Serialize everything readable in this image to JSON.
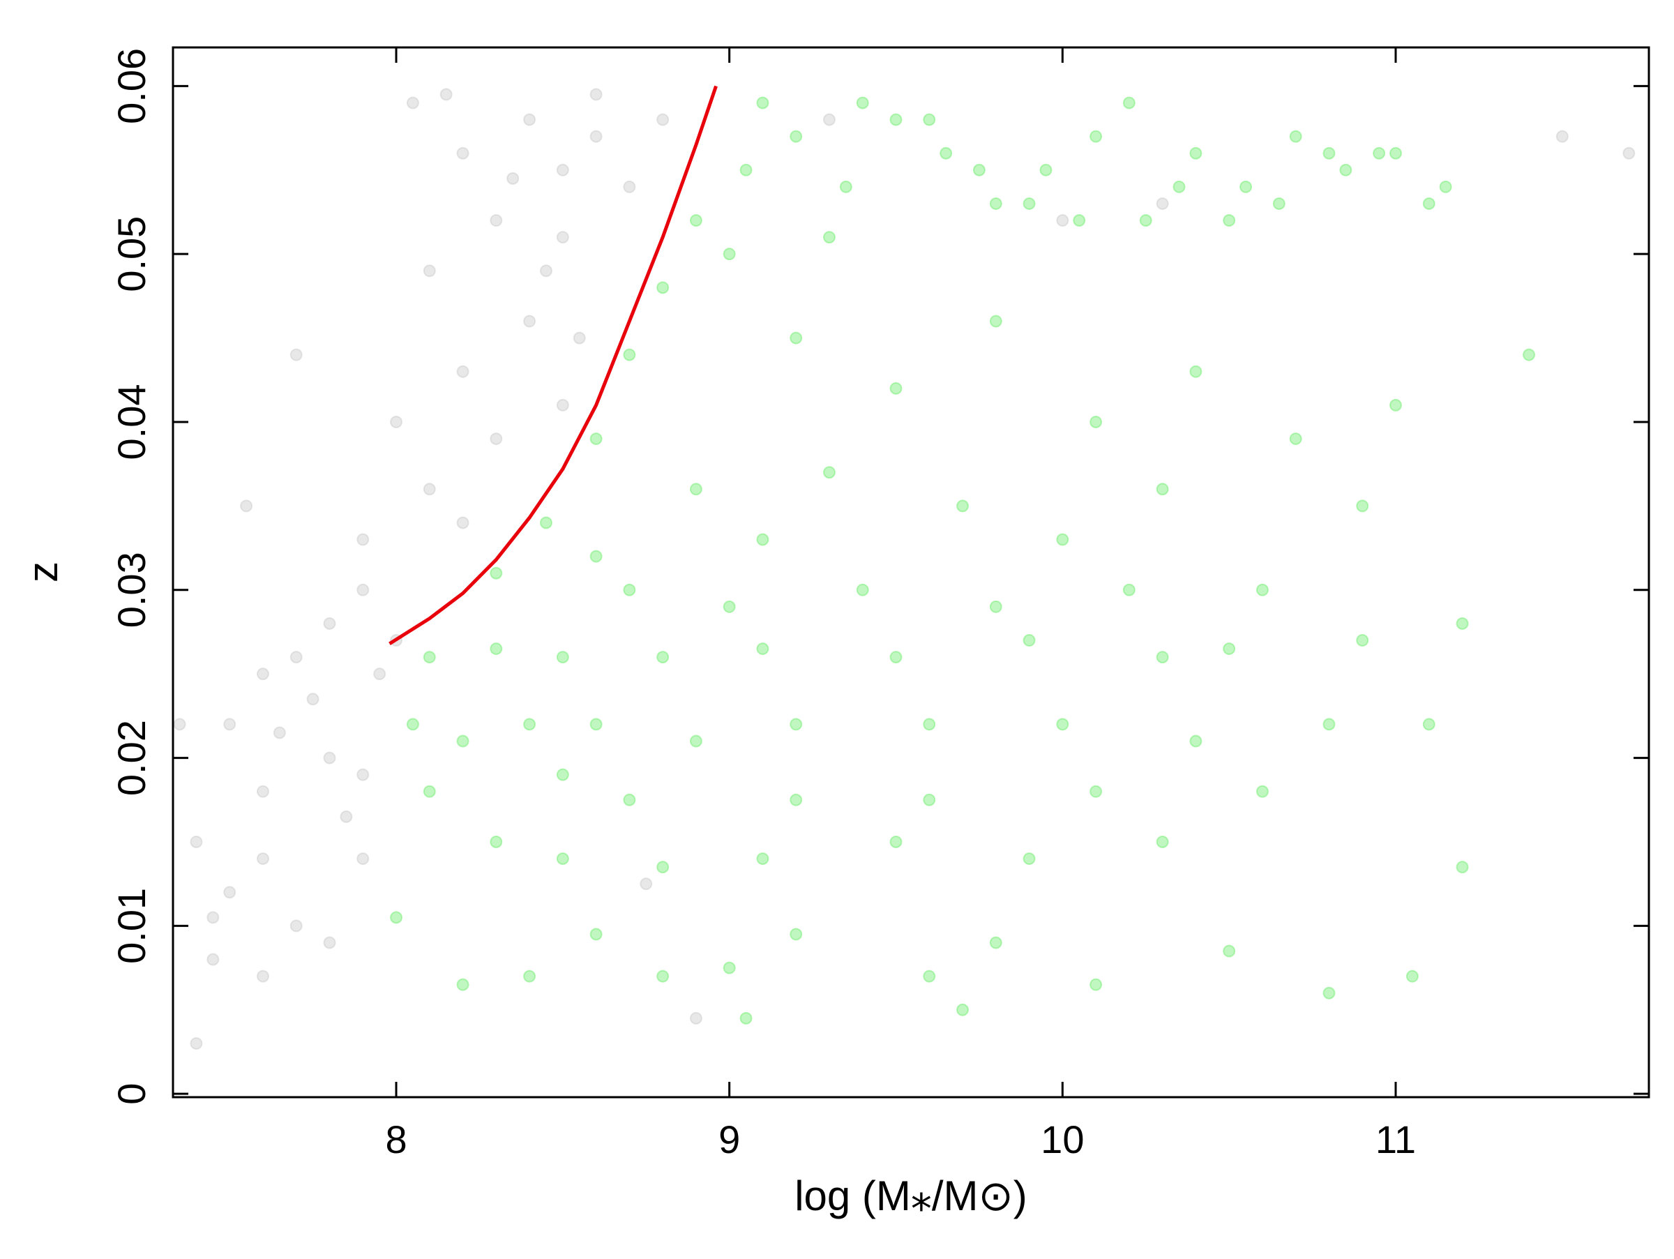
{
  "chart_data": {
    "type": "scatter",
    "x_label": "log (M⁎/M⊙)",
    "y_label": "z",
    "xlim": [
      7.33,
      11.76
    ],
    "ylim": [
      -0.0002,
      0.0623
    ],
    "xticks": [
      8,
      9,
      10,
      11
    ],
    "yticks": [
      0,
      0.01,
      0.02,
      0.03,
      0.04,
      0.05,
      0.06
    ],
    "grid": false,
    "series": [
      {
        "color": "#b4b4b4",
        "opacity": 0.3,
        "x": [
          8.5,
          8.6,
          8.4,
          8.7,
          8.3,
          8.5,
          8.8,
          8.2,
          8.1,
          8.4,
          8.2,
          8.5,
          8.3,
          8.0,
          8.1,
          7.9,
          8.2,
          7.9,
          7.8,
          7.7,
          7.6,
          7.5,
          7.8,
          7.9,
          7.6,
          7.4,
          7.5,
          7.7,
          7.45,
          7.6,
          7.8,
          7.4,
          7.35,
          7.55,
          7.7,
          8.05,
          8.15,
          8.6,
          8.35,
          8.45,
          8.55,
          7.95,
          7.85,
          7.9,
          9.3,
          10.3,
          11.5,
          11.7,
          10.0,
          8.75,
          8.9,
          7.65,
          8.0,
          7.75,
          7.45,
          7.6
        ],
        "values": [
          0.055,
          0.057,
          0.058,
          0.054,
          0.052,
          0.051,
          0.058,
          0.056,
          0.049,
          0.046,
          0.043,
          0.041,
          0.039,
          0.04,
          0.036,
          0.033,
          0.034,
          0.03,
          0.028,
          0.026,
          0.025,
          0.022,
          0.02,
          0.019,
          0.018,
          0.015,
          0.012,
          0.01,
          0.008,
          0.007,
          0.009,
          0.003,
          0.022,
          0.035,
          0.044,
          0.059,
          0.0595,
          0.0595,
          0.0545,
          0.049,
          0.045,
          0.025,
          0.0165,
          0.014,
          0.058,
          0.053,
          0.057,
          0.056,
          0.052,
          0.0125,
          0.0045,
          0.0215,
          0.027,
          0.0235,
          0.0105,
          0.014
        ]
      },
      {
        "color": "#2ee62e",
        "opacity": 0.3,
        "x": [
          9.05,
          9.2,
          9.35,
          9.5,
          9.65,
          9.8,
          9.95,
          10.1,
          10.25,
          10.4,
          10.55,
          10.7,
          10.85,
          11.0,
          11.15,
          9.1,
          9.3,
          9.6,
          9.9,
          10.2,
          10.5,
          10.8,
          11.1,
          9.0,
          9.4,
          9.75,
          10.05,
          10.35,
          10.65,
          10.95,
          8.7,
          8.8,
          8.9,
          8.6,
          9.2,
          9.5,
          9.8,
          10.1,
          10.4,
          10.7,
          11.0,
          11.4,
          9.3,
          9.7,
          10.0,
          10.3,
          10.9,
          8.45,
          8.6,
          8.9,
          9.1,
          8.3,
          8.7,
          9.0,
          9.4,
          9.8,
          10.2,
          10.6,
          11.2,
          8.1,
          8.3,
          8.5,
          8.8,
          9.1,
          9.5,
          9.9,
          10.3,
          10.5,
          10.9,
          8.05,
          8.2,
          8.4,
          8.6,
          8.9,
          9.2,
          9.6,
          10.0,
          10.4,
          10.8,
          11.1,
          8.1,
          8.5,
          8.7,
          9.2,
          9.6,
          10.1,
          10.6,
          8.3,
          8.5,
          8.8,
          9.1,
          9.5,
          9.9,
          10.3,
          11.2,
          8.0,
          8.2,
          8.4,
          8.8,
          9.0,
          9.2,
          9.6,
          9.7,
          10.1,
          10.5,
          10.8,
          11.05,
          9.05,
          8.6,
          9.8
        ],
        "values": [
          0.055,
          0.057,
          0.054,
          0.058,
          0.056,
          0.053,
          0.055,
          0.057,
          0.052,
          0.056,
          0.054,
          0.057,
          0.055,
          0.056,
          0.054,
          0.059,
          0.051,
          0.058,
          0.053,
          0.059,
          0.052,
          0.056,
          0.053,
          0.05,
          0.059,
          0.055,
          0.052,
          0.054,
          0.053,
          0.056,
          0.044,
          0.048,
          0.052,
          0.039,
          0.045,
          0.042,
          0.046,
          0.04,
          0.043,
          0.039,
          0.041,
          0.044,
          0.037,
          0.035,
          0.033,
          0.036,
          0.035,
          0.034,
          0.032,
          0.036,
          0.033,
          0.031,
          0.03,
          0.029,
          0.03,
          0.029,
          0.03,
          0.03,
          0.028,
          0.026,
          0.0265,
          0.026,
          0.026,
          0.0265,
          0.026,
          0.027,
          0.026,
          0.0265,
          0.027,
          0.022,
          0.021,
          0.022,
          0.022,
          0.021,
          0.022,
          0.022,
          0.022,
          0.021,
          0.022,
          0.022,
          0.018,
          0.019,
          0.0175,
          0.0175,
          0.0175,
          0.018,
          0.018,
          0.015,
          0.014,
          0.0135,
          0.014,
          0.015,
          0.014,
          0.015,
          0.0135,
          0.0105,
          0.0065,
          0.007,
          0.007,
          0.0075,
          0.0095,
          0.007,
          0.005,
          0.0065,
          0.0085,
          0.006,
          0.007,
          0.0045,
          0.0095,
          0.009
        ]
      }
    ],
    "lines": [
      {
        "color": "#e8000b",
        "x": [
          7.98,
          8.1,
          8.2,
          8.3,
          8.4,
          8.5,
          8.6,
          8.7,
          8.8,
          8.9,
          8.96
        ],
        "values": [
          0.0268,
          0.0283,
          0.0298,
          0.0318,
          0.0343,
          0.0372,
          0.041,
          0.046,
          0.051,
          0.0565,
          0.06
        ]
      }
    ]
  }
}
